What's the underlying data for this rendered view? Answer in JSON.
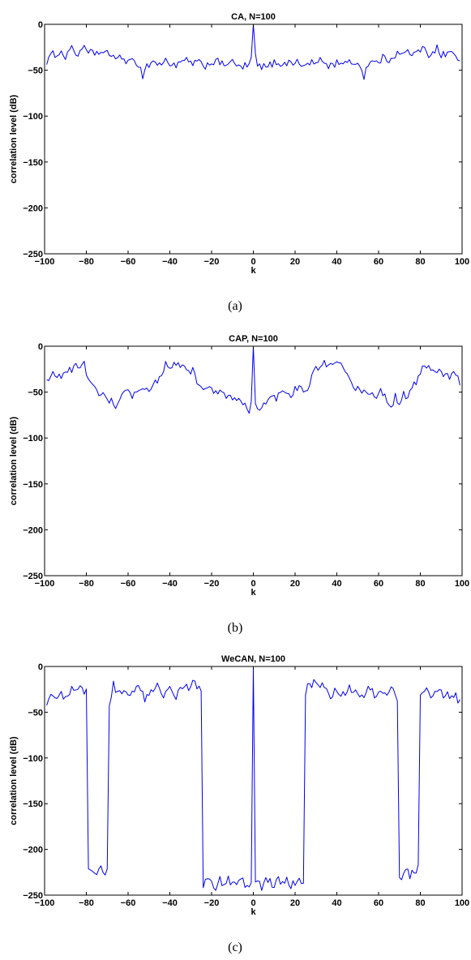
{
  "chart_data": [
    {
      "type": "line",
      "title": "CA, N=100",
      "xlabel": "k",
      "ylabel": "correlation level (dB)",
      "caption": "(a)",
      "xlim": [
        -100,
        100
      ],
      "ylim": [
        -250,
        0
      ],
      "x_ticks": [
        -100,
        -80,
        -60,
        -40,
        -20,
        0,
        20,
        40,
        60,
        80,
        100
      ],
      "y_ticks": [
        0,
        -50,
        -100,
        -150,
        -200,
        -250
      ],
      "grid": false,
      "line_color": "#0000ee",
      "profile_k": [
        -99,
        -96,
        -93,
        -90,
        -88,
        -86,
        -84,
        -82,
        -80,
        -77,
        -74,
        -71,
        -68,
        -65,
        -62,
        -59,
        -56,
        -54,
        -53,
        -52,
        -50,
        -48,
        -45,
        -42,
        -39,
        -36,
        -33,
        -30,
        -27,
        -24,
        -21,
        -18,
        -15,
        -12,
        -9,
        -6,
        -4,
        -2,
        -1
      ],
      "profile_db": [
        -40,
        -33,
        -30,
        -35,
        -26,
        -29,
        -34,
        -23,
        -31,
        -32,
        -30,
        -33,
        -32,
        -38,
        -37,
        -42,
        -41,
        -45,
        -62,
        -46,
        -44,
        -40,
        -44,
        -40,
        -43,
        -45,
        -39,
        -43,
        -41,
        -46,
        -42,
        -40,
        -44,
        -41,
        -43,
        -48,
        -45,
        -47,
        -35
      ],
      "center_db": 0
    },
    {
      "type": "line",
      "title": "CAP, N=100",
      "xlabel": "k",
      "ylabel": "correlation level (dB)",
      "caption": "(b)",
      "xlim": [
        -100,
        100
      ],
      "ylim": [
        -250,
        0
      ],
      "x_ticks": [
        -100,
        -80,
        -60,
        -40,
        -20,
        0,
        20,
        40,
        60,
        80,
        100
      ],
      "y_ticks": [
        0,
        -50,
        -100,
        -150,
        -200,
        -250
      ],
      "grid": false,
      "line_color": "#0000ee",
      "profile_k": [
        -99,
        -96,
        -93,
        -90,
        -87,
        -84,
        -81,
        -79,
        -76,
        -74,
        -72,
        -70,
        -68,
        -66,
        -64,
        -61,
        -58,
        -55,
        -52,
        -49,
        -46,
        -44,
        -42,
        -40,
        -37,
        -34,
        -31,
        -29,
        -27,
        -24,
        -21,
        -18,
        -15,
        -12,
        -9,
        -6,
        -4,
        -2,
        -1
      ],
      "profile_db": [
        -40,
        -30,
        -34,
        -28,
        -25,
        -22,
        -20,
        -34,
        -45,
        -58,
        -50,
        -62,
        -55,
        -70,
        -58,
        -50,
        -55,
        -52,
        -48,
        -45,
        -38,
        -30,
        -18,
        -20,
        -22,
        -19,
        -28,
        -24,
        -42,
        -48,
        -45,
        -52,
        -50,
        -55,
        -58,
        -62,
        -65,
        -70,
        -60
      ],
      "center_db": 0
    },
    {
      "type": "line",
      "title": "WeCAN, N=100",
      "xlabel": "k",
      "ylabel": "correlation level (dB)",
      "caption": "(c)",
      "xlim": [
        -100,
        100
      ],
      "ylim": [
        -250,
        0
      ],
      "x_ticks": [
        -100,
        -80,
        -60,
        -40,
        -20,
        0,
        20,
        40,
        60,
        80,
        100
      ],
      "y_ticks": [
        0,
        -50,
        -100,
        -150,
        -200,
        -250
      ],
      "grid": false,
      "line_color": "#0000ee",
      "profile_k": [
        -99,
        -97,
        -95,
        -93,
        -91,
        -89,
        -87,
        -85,
        -83,
        -81,
        -80,
        -79,
        -77,
        -75,
        -73,
        -71,
        -70,
        -69,
        -67,
        -65,
        -63,
        -61,
        -58,
        -55,
        -52,
        -49,
        -46,
        -43,
        -40,
        -37,
        -34,
        -31,
        -29,
        -27,
        -26,
        -25,
        -24,
        -22,
        -20,
        -18,
        -16,
        -14,
        -12,
        -10,
        -8,
        -6,
        -4,
        -2,
        -1
      ],
      "profile_db": [
        -40,
        -33,
        -35,
        -30,
        -32,
        -28,
        -26,
        -30,
        -24,
        -30,
        -27,
        -220,
        -224,
        -228,
        -222,
        -230,
        -226,
        -40,
        -20,
        -28,
        -32,
        -26,
        -30,
        -24,
        -35,
        -28,
        -22,
        -30,
        -26,
        -32,
        -20,
        -24,
        -18,
        -22,
        -20,
        -30,
        -240,
        -228,
        -235,
        -242,
        -232,
        -238,
        -230,
        -240,
        -236,
        -232,
        -240,
        -238,
        -235
      ],
      "center_db": 0
    }
  ]
}
